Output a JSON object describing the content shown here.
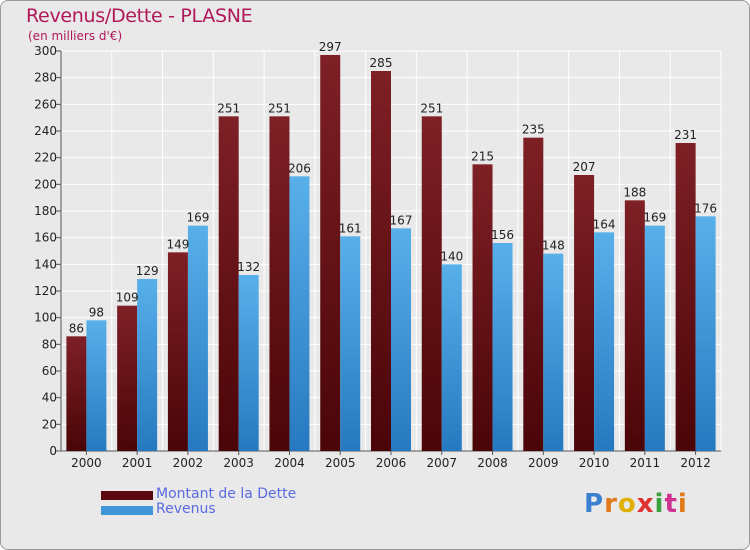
{
  "title": "Revenus/Dette - PLASNE",
  "subtitle": "(en milliers d'€)",
  "logo": "Proxiti",
  "colors": {
    "debt": "#6b0d12",
    "debt_dark": "#4a0508",
    "revenue": "#4aa3e0",
    "revenue_dark": "#2679bf",
    "title": "#b0185a",
    "legend_text": "#5a6ae0"
  },
  "legend": [
    {
      "label": "Montant de la Dette",
      "color": "#6b0d12"
    },
    {
      "label": "Revenus",
      "color": "#4aa3e0"
    }
  ],
  "chart_data": {
    "type": "bar",
    "title": "Revenus/Dette - PLASNE",
    "ylabel": "(en milliers d'€)",
    "xlabel": "",
    "categories": [
      "2000",
      "2001",
      "2002",
      "2003",
      "2004",
      "2005",
      "2006",
      "2007",
      "2008",
      "2009",
      "2010",
      "2011",
      "2012"
    ],
    "series": [
      {
        "name": "Montant de la Dette",
        "values": [
          86,
          109,
          149,
          251,
          251,
          297,
          285,
          251,
          215,
          235,
          207,
          188,
          231
        ]
      },
      {
        "name": "Revenus",
        "values": [
          98,
          129,
          169,
          132,
          206,
          161,
          167,
          140,
          156,
          148,
          164,
          169,
          176
        ]
      }
    ],
    "ylim": [
      0,
      300
    ],
    "yticks": [
      0,
      20,
      40,
      60,
      80,
      100,
      120,
      140,
      160,
      180,
      200,
      220,
      240,
      260,
      280,
      300
    ],
    "grid": true,
    "legend_position": "bottom-left"
  }
}
